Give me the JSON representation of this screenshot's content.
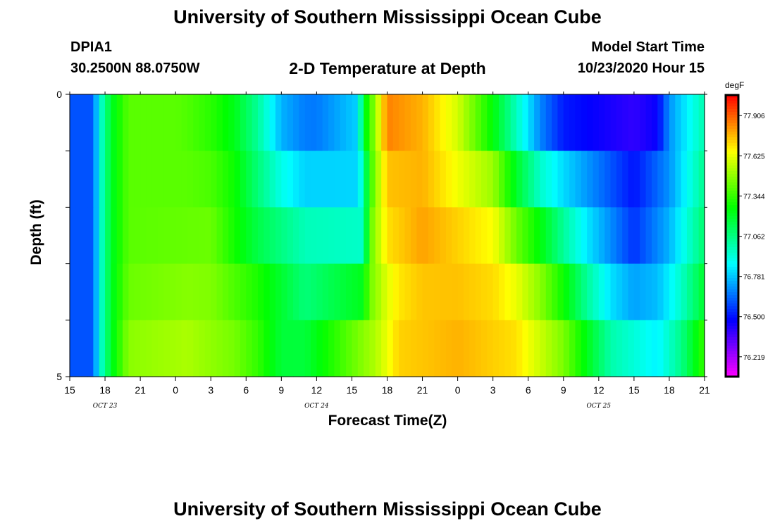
{
  "header": {
    "title": "University of Southern Mississippi Ocean Cube",
    "station_id": "DPIA1",
    "station_coords": "30.2500N 88.0750W",
    "plot_title": "2-D Temperature at Depth",
    "start_label": "Model Start Time",
    "start_value": "10/23/2020 Hour 15"
  },
  "footer": {
    "title": "University of Southern Mississippi Ocean Cube"
  },
  "colorbar": {
    "unit": "degF",
    "ticks": [
      "77.906",
      "77.625",
      "77.344",
      "77.062",
      "76.781",
      "76.500",
      "76.219"
    ],
    "range": [
      76.08,
      78.05
    ]
  },
  "chart_data": {
    "type": "heatmap",
    "xlabel": "Forecast Time(Z)",
    "ylabel": "Depth (ft)",
    "ylim": [
      0,
      5
    ],
    "y_tick_labels": [
      "0",
      "5"
    ],
    "x_tick_labels": [
      "15",
      "18",
      "21",
      "0",
      "3",
      "6",
      "9",
      "12",
      "15",
      "18",
      "21",
      "0",
      "3",
      "6",
      "9",
      "12",
      "15",
      "18",
      "21"
    ],
    "x_dates": [
      {
        "label": "OCT  23",
        "at_tick": 1
      },
      {
        "label": "OCT  24",
        "at_tick": 7
      },
      {
        "label": "OCT  25",
        "at_tick": 15
      }
    ],
    "x_hours_span": 54,
    "depth_layers": [
      "0-1",
      "1-2",
      "2-3",
      "3-4",
      "4-5"
    ],
    "rows": [
      {
        "depth": 0,
        "values": [
          [
            0,
            76.6
          ],
          [
            2,
            76.6
          ],
          [
            2.5,
            76.9
          ],
          [
            3.5,
            77.2
          ],
          [
            5,
            77.4
          ],
          [
            9,
            77.4
          ],
          [
            12,
            77.3
          ],
          [
            16,
            77.0
          ],
          [
            18,
            76.7
          ],
          [
            21,
            76.6
          ],
          [
            24.5,
            76.8
          ],
          [
            25,
            77.2
          ],
          [
            26,
            77.5
          ],
          [
            27,
            77.9
          ],
          [
            30,
            77.8
          ],
          [
            33,
            77.6
          ],
          [
            36,
            77.1
          ],
          [
            39,
            76.7
          ],
          [
            42,
            76.3
          ],
          [
            50,
            76.3
          ],
          [
            51,
            76.7
          ],
          [
            54,
            77.0
          ]
        ]
      },
      {
        "depth": 1,
        "values": [
          [
            0,
            76.6
          ],
          [
            2,
            76.6
          ],
          [
            2.5,
            76.9
          ],
          [
            3.5,
            77.2
          ],
          [
            5,
            77.4
          ],
          [
            10,
            77.4
          ],
          [
            14,
            77.3
          ],
          [
            18,
            76.8
          ],
          [
            20,
            76.7
          ],
          [
            24.5,
            76.8
          ],
          [
            25,
            77.2
          ],
          [
            26,
            77.5
          ],
          [
            27,
            77.8
          ],
          [
            30,
            77.75
          ],
          [
            36,
            77.4
          ],
          [
            40,
            76.8
          ],
          [
            48,
            76.5
          ],
          [
            51,
            76.7
          ],
          [
            54,
            77.0
          ]
        ]
      },
      {
        "depth": 2,
        "values": [
          [
            0,
            76.6
          ],
          [
            2,
            76.6
          ],
          [
            2.5,
            76.9
          ],
          [
            3.5,
            77.2
          ],
          [
            5,
            77.4
          ],
          [
            12,
            77.4
          ],
          [
            16,
            77.1
          ],
          [
            20,
            76.9
          ],
          [
            25,
            76.8
          ],
          [
            25.5,
            77.3
          ],
          [
            27,
            77.7
          ],
          [
            30,
            77.8
          ],
          [
            36,
            77.6
          ],
          [
            38,
            77.3
          ],
          [
            42,
            76.9
          ],
          [
            48,
            76.5
          ],
          [
            51,
            76.7
          ],
          [
            54,
            77.1
          ]
        ]
      },
      {
        "depth": 3,
        "values": [
          [
            0,
            76.6
          ],
          [
            2,
            76.6
          ],
          [
            2.5,
            76.9
          ],
          [
            3.5,
            77.2
          ],
          [
            5,
            77.4
          ],
          [
            12,
            77.45
          ],
          [
            16,
            77.2
          ],
          [
            20,
            77.05
          ],
          [
            25,
            77.1
          ],
          [
            25.5,
            77.5
          ],
          [
            27,
            77.7
          ],
          [
            30,
            77.8
          ],
          [
            36,
            77.7
          ],
          [
            40,
            77.4
          ],
          [
            44,
            76.9
          ],
          [
            48,
            76.6
          ],
          [
            51,
            76.8
          ],
          [
            54,
            77.1
          ]
        ]
      },
      {
        "depth": 4,
        "values": [
          [
            0,
            76.6
          ],
          [
            2,
            76.6
          ],
          [
            2.5,
            76.9
          ],
          [
            3.5,
            77.2
          ],
          [
            5,
            77.45
          ],
          [
            10,
            77.5
          ],
          [
            16,
            77.4
          ],
          [
            20,
            77.1
          ],
          [
            26,
            77.4
          ],
          [
            28,
            77.65
          ],
          [
            33,
            77.75
          ],
          [
            38,
            77.7
          ],
          [
            42,
            77.4
          ],
          [
            46,
            76.9
          ],
          [
            50,
            76.8
          ],
          [
            52,
            77.0
          ],
          [
            54,
            77.3
          ]
        ]
      },
      {
        "depth": 5,
        "values": [
          [
            0,
            76.6
          ],
          [
            2,
            76.6
          ],
          [
            2.5,
            76.9
          ],
          [
            3.5,
            77.2
          ],
          [
            5,
            77.5
          ],
          [
            10,
            77.55
          ],
          [
            14,
            77.45
          ],
          [
            18,
            77.1
          ],
          [
            25,
            77.6
          ],
          [
            28,
            77.8
          ],
          [
            33,
            77.8
          ],
          [
            38,
            77.7
          ],
          [
            42,
            77.5
          ],
          [
            46,
            77.1
          ],
          [
            50,
            76.9
          ],
          [
            52,
            77.1
          ],
          [
            54,
            77.4
          ]
        ]
      }
    ]
  }
}
